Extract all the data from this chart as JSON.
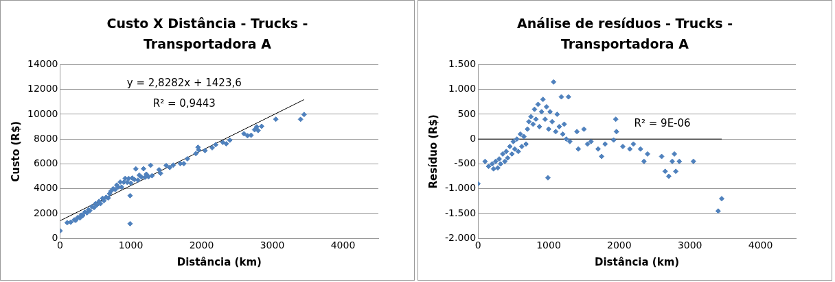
{
  "chart_data": [
    {
      "type": "scatter",
      "title": "Custo X Distância - Trucks - Transportadora A",
      "xlabel": "Distância (km)",
      "ylabel": "Custo (R$)",
      "xlim": [
        0,
        4500
      ],
      "xticks": [
        0,
        1000,
        2000,
        3000,
        4000
      ],
      "ylim": [
        0,
        14000
      ],
      "yticks": [
        0,
        2000,
        4000,
        6000,
        8000,
        10000,
        12000,
        14000
      ],
      "grid": "y",
      "marker": "diamond",
      "annotations": [
        "y = 2,8282x + 1423,6",
        "R² = 0,9443"
      ],
      "series": [
        {
          "color": "#4f81bd",
          "x": [
            0,
            100,
            150,
            200,
            220,
            250,
            280,
            300,
            320,
            350,
            380,
            400,
            420,
            450,
            480,
            500,
            520,
            550,
            570,
            600,
            620,
            650,
            680,
            700,
            720,
            750,
            780,
            800,
            820,
            850,
            870,
            900,
            920,
            950,
            970,
            990,
            990,
            1000,
            1020,
            1050,
            1070,
            1100,
            1120,
            1150,
            1180,
            1200,
            1220,
            1250,
            1280,
            1300,
            1400,
            1420,
            1500,
            1550,
            1600,
            1700,
            1750,
            1800,
            1920,
            1950,
            1960,
            2050,
            2150,
            2200,
            2300,
            2350,
            2400,
            2600,
            2650,
            2700,
            2750,
            2780,
            2800,
            2850,
            3050,
            3400,
            3450
          ],
          "values": [
            600,
            1260,
            1300,
            1490,
            1450,
            1680,
            1640,
            1870,
            1830,
            2110,
            2050,
            2300,
            2230,
            2550,
            2480,
            2790,
            2690,
            2980,
            2790,
            3220,
            3030,
            3310,
            3250,
            3600,
            3810,
            4000,
            3930,
            4290,
            4140,
            4530,
            4130,
            4520,
            4830,
            4510,
            4820,
            3440,
            1180,
            4450,
            4860,
            4740,
            5600,
            4690,
            5090,
            4930,
            5610,
            4920,
            5170,
            4960,
            5890,
            5050,
            5530,
            5240,
            5870,
            5710,
            5900,
            6030,
            6020,
            6410,
            6830,
            7340,
            7120,
            7070,
            7300,
            7550,
            7730,
            7620,
            7910,
            8430,
            8270,
            8310,
            8750,
            8990,
            8690,
            9030,
            9600,
            9590,
            9980
          ]
        },
        {
          "type": "line",
          "color": "#000000",
          "marker": "none",
          "x": [
            0,
            3450
          ],
          "values": [
            1420,
            11180
          ]
        }
      ]
    },
    {
      "type": "scatter",
      "title": "Análise de resíduos - Trucks - Transportadora A",
      "xlabel": "Distância (km)",
      "ylabel": "Resíduo (R$)",
      "xlim": [
        0,
        4500
      ],
      "xticks": [
        0,
        1000,
        2000,
        3000,
        4000
      ],
      "ylim": [
        -2000,
        1500
      ],
      "yticks": [
        {
          "value": -2000,
          "label": "-2.000"
        },
        {
          "value": -1500,
          "label": "-1.500"
        },
        {
          "value": -1000,
          "label": "-1.000"
        },
        {
          "value": -500,
          "label": "-500"
        },
        {
          "value": 0,
          "label": "0"
        },
        {
          "value": 500,
          "label": "500"
        },
        {
          "value": 1000,
          "label": "1.000"
        },
        {
          "value": 1500,
          "label": "1.500"
        }
      ],
      "grid": "y",
      "marker": "diamond",
      "annotations": [
        "R² = 9E-06"
      ],
      "series": [
        {
          "color": "#4f81bd",
          "x": [
            0,
            100,
            150,
            200,
            220,
            250,
            280,
            300,
            320,
            350,
            380,
            400,
            420,
            450,
            480,
            500,
            520,
            550,
            570,
            600,
            620,
            650,
            680,
            700,
            720,
            750,
            780,
            800,
            820,
            850,
            870,
            900,
            920,
            950,
            970,
            990,
            1000,
            1020,
            1050,
            1070,
            1100,
            1120,
            1150,
            1180,
            1200,
            1220,
            1250,
            1280,
            1300,
            1400,
            1420,
            1500,
            1550,
            1600,
            1700,
            1750,
            1800,
            1920,
            1950,
            1960,
            2050,
            2150,
            2200,
            2300,
            2350,
            2400,
            2600,
            2650,
            2700,
            2750,
            2780,
            2800,
            2850,
            3050,
            3400,
            3450
          ],
          "values": [
            -900,
            -450,
            -550,
            -500,
            -600,
            -450,
            -580,
            -400,
            -500,
            -300,
            -450,
            -250,
            -380,
            -150,
            -300,
            -50,
            -200,
            0,
            -250,
            100,
            -150,
            50,
            -100,
            200,
            350,
            450,
            300,
            600,
            400,
            700,
            250,
            550,
            800,
            400,
            650,
            -780,
            200,
            550,
            350,
            1150,
            150,
            500,
            250,
            850,
            100,
            300,
            0,
            850,
            -50,
            150,
            -200,
            200,
            -100,
            -50,
            -200,
            -350,
            -100,
            -20,
            400,
            150,
            -150,
            -200,
            -100,
            -200,
            -450,
            -300,
            -350,
            -650,
            -750,
            -450,
            -300,
            -650,
            -450,
            -450,
            -1450,
            -1200
          ]
        },
        {
          "type": "line",
          "color": "#000000",
          "marker": "none",
          "x": [
            0,
            3450
          ],
          "values": [
            0,
            0
          ]
        }
      ]
    }
  ]
}
